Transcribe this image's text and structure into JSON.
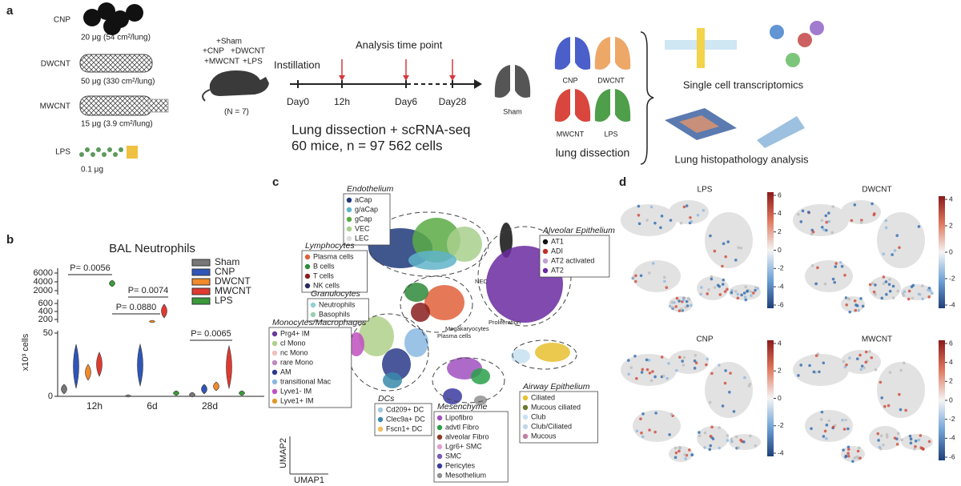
{
  "panels": {
    "a": {
      "label": "a",
      "materials": [
        {
          "name": "CNP",
          "dose": "20 μg (54 cm²/lung)",
          "color": "#3b4f9c"
        },
        {
          "name": "DWCNT",
          "dose": "50 μg (330 cm²/lung)",
          "color": "#e8a35a"
        },
        {
          "name": "MWCNT",
          "dose": "15 μg (3.9 cm²/lung)",
          "color": "#c23a3a"
        },
        {
          "name": "LPS",
          "dose": "0.1 μg",
          "color": "#5b9a5b"
        }
      ],
      "groups": [
        {
          "text": "+Sham",
          "color": "#222222"
        },
        {
          "text": "+CNP",
          "color": "#3b6fd1"
        },
        {
          "text": "+DWCNT",
          "color": "#e8a35a"
        },
        {
          "text": "+MWCNT",
          "color": "#c23a3a"
        },
        {
          "text": "+LPS",
          "color": "#3f9a3f"
        }
      ],
      "n": "(N = 7)",
      "instillation": "Instillation",
      "analysis": "Analysis time point",
      "timepoints": [
        "Day0",
        "12h",
        "Day6",
        "Day28"
      ],
      "summary": [
        "Lung dissection + scRNA-seq",
        "60 mice, n = 97 562 cells"
      ],
      "lungs": [
        {
          "name": "Sham",
          "color": "#555555"
        },
        {
          "name": "CNP",
          "color": "#4a5fc9"
        },
        {
          "name": "DWCNT",
          "color": "#eda868"
        },
        {
          "name": "MWCNT",
          "color": "#d9463e"
        },
        {
          "name": "LPS",
          "color": "#4e9e4a"
        }
      ],
      "lung_caption": "lung dissection",
      "methods": [
        "Single cell transcriptomics",
        "Lung histopathology analysis"
      ]
    },
    "b": {
      "label": "b",
      "title": "BAL Neutrophils",
      "ylabel": "x10³ cells",
      "yticks": [
        "6000",
        "4000",
        "2000",
        "600",
        "400",
        "200",
        "50",
        "0"
      ],
      "categories": [
        "12h",
        "6d",
        "28d"
      ],
      "legend": [
        {
          "name": "Sham",
          "color": "#777777"
        },
        {
          "name": "CNP",
          "color": "#2f55b8"
        },
        {
          "name": "DWCNT",
          "color": "#f08a2a"
        },
        {
          "name": "MWCNT",
          "color": "#e03a2f"
        },
        {
          "name": "LPS",
          "color": "#3a9a3a"
        }
      ],
      "pvalues": [
        "P= 0.0056",
        "P= 0.0074",
        "P= 0.0880",
        "P= 0.0065"
      ]
    },
    "c": {
      "label": "c",
      "xlabel": "UMAP1",
      "ylabel": "UMAP2",
      "groups": [
        {
          "title": "Endothelium",
          "items": [
            {
              "name": "aCap",
              "color": "#1f3a7a"
            },
            {
              "name": "g/aCap",
              "color": "#5fb4c9"
            },
            {
              "name": "gCap",
              "color": "#5aaa45"
            },
            {
              "name": "VEC",
              "color": "#a8d08d"
            },
            {
              "name": "LEC",
              "color": "#dddddd"
            }
          ]
        },
        {
          "title": "Lymphocytes",
          "items": [
            {
              "name": "Plasma cells",
              "color": "#e0603a"
            },
            {
              "name": "B cells",
              "color": "#2f8a3a"
            },
            {
              "name": "T cells",
              "color": "#8a1f1f"
            },
            {
              "name": "NK cells",
              "color": "#2a2a5a"
            }
          ]
        },
        {
          "title": "Granulocytes",
          "items": [
            {
              "name": "Neutrophils",
              "color": "#8fd0d0"
            },
            {
              "name": "Basophils",
              "color": "#9ad0b0"
            }
          ]
        },
        {
          "title": "Monocytes/Macrophages",
          "items": [
            {
              "name": "Prg4+ IM",
              "color": "#6a3a9a"
            },
            {
              "name": "cl Mono",
              "color": "#b0d08a"
            },
            {
              "name": "nc Mono",
              "color": "#f0c0c0"
            },
            {
              "name": "rare Mono",
              "color": "#c08ac0"
            },
            {
              "name": "AM",
              "color": "#2a3a8a"
            },
            {
              "name": "transitional Mac",
              "color": "#8ab8e0"
            },
            {
              "name": "Lyve1- IM",
              "color": "#c050c0"
            },
            {
              "name": "Lyve1+ IM",
              "color": "#e09a30"
            }
          ]
        },
        {
          "title": "DCs",
          "items": [
            {
              "name": "Cd209+ DC",
              "color": "#a0c8e0"
            },
            {
              "name": "Clec9a+ DC",
              "color": "#3a8aaa"
            },
            {
              "name": "Fscn1+ DC",
              "color": "#f0c060"
            }
          ]
        },
        {
          "title": "Mesenchyme",
          "items": [
            {
              "name": "Lipofibro",
              "color": "#a050c0"
            },
            {
              "name": "advtl Fibro",
              "color": "#2aa04a"
            },
            {
              "name": "alveolar Fibro",
              "color": "#8a3a2a"
            },
            {
              "name": "Lgr6+ SMC",
              "color": "#e0a0d0"
            },
            {
              "name": "SMC",
              "color": "#7a5ab0"
            },
            {
              "name": "Pericytes",
              "color": "#3a3aa0"
            },
            {
              "name": "Mesothelium",
              "color": "#909090"
            }
          ]
        },
        {
          "title": "Alveolar Epithelium",
          "items": [
            {
              "name": "AT1",
              "color": "#111111"
            },
            {
              "name": "ADI",
              "color": "#c0302a"
            },
            {
              "name": "AT2 activated",
              "color": "#c0a0d0"
            },
            {
              "name": "AT2",
              "color": "#6a2aa0"
            }
          ]
        },
        {
          "title": "Airway Epithelium",
          "items": [
            {
              "name": "Ciliated",
              "color": "#e8c030"
            },
            {
              "name": "Mucous ciliated",
              "color": "#6a7a2a"
            },
            {
              "name": "Club",
              "color": "#c8e0f0"
            },
            {
              "name": "Club/Ciliated",
              "color": "#c0d8e8"
            },
            {
              "name": "Mucous",
              "color": "#c080a0"
            }
          ]
        }
      ],
      "floating": [
        "NEC",
        "Proliferation",
        "Megakaryocytes",
        "Plasma cells"
      ]
    },
    "d": {
      "label": "d",
      "plots": [
        {
          "title": "LPS",
          "ticks": [
            "6",
            "4",
            "2",
            "0",
            "-2",
            "-4",
            "-6"
          ]
        },
        {
          "title": "DWCNT",
          "ticks": [
            "4",
            "2",
            "0",
            "-2",
            "-4"
          ]
        },
        {
          "title": "CNP",
          "ticks": [
            "4",
            "2",
            "0",
            "-2",
            "-4"
          ]
        },
        {
          "title": "MWCNT",
          "ticks": [
            "6",
            "4",
            "2",
            "0",
            "-2",
            "-4",
            "-6"
          ]
        }
      ]
    }
  }
}
